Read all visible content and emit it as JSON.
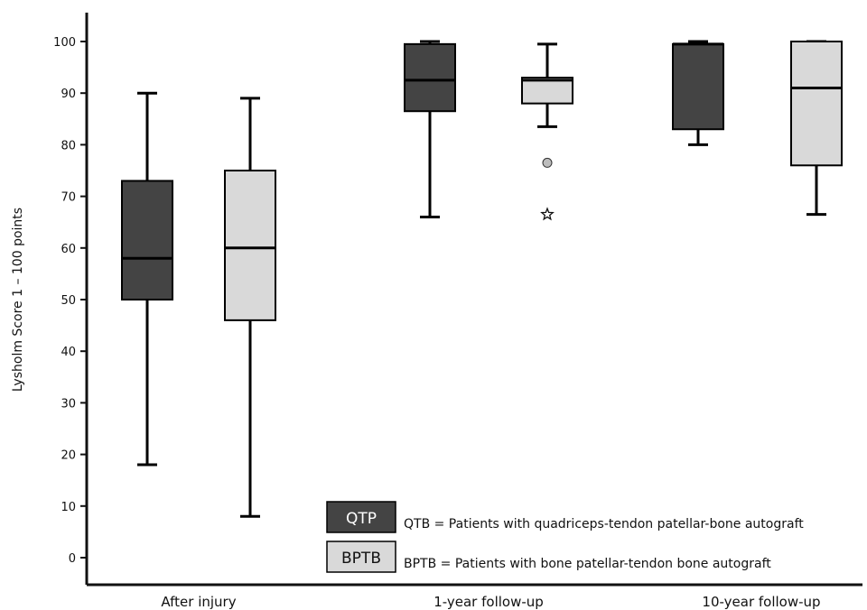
{
  "chart_data": {
    "type": "boxplot",
    "ylabel": "Lysholm Score 1 – 100 points",
    "ylim": [
      0,
      100
    ],
    "yticks": [
      0,
      10,
      20,
      30,
      40,
      50,
      60,
      70,
      80,
      90,
      100
    ],
    "grid": false,
    "categories": [
      "After injury",
      "1-year follow-up",
      "10-year follow-up"
    ],
    "series": [
      {
        "name": "QTP",
        "description": "QTB = Patients with quadriceps-tendon patellar-bone autograft",
        "color": "#444444",
        "boxes": [
          {
            "min": 18,
            "q1": 50,
            "median": 58,
            "q3": 73,
            "max": 90,
            "outliers": []
          },
          {
            "min": 66,
            "q1": 86.5,
            "median": 92.5,
            "q3": 99.5,
            "max": 100,
            "outliers": []
          },
          {
            "min": 80,
            "q1": 83,
            "median": 99.5,
            "q3": 99.5,
            "max": 100,
            "outliers": []
          }
        ]
      },
      {
        "name": "BPTB",
        "description": "BPTB = Patients with bone patellar-tendon bone autograft",
        "color": "#d9d9d9",
        "boxes": [
          {
            "min": 8,
            "q1": 46,
            "median": 60,
            "q3": 75,
            "max": 89,
            "outliers": []
          },
          {
            "min": 83.5,
            "q1": 88,
            "median": 92.5,
            "q3": 93,
            "max": 99.5,
            "outliers": [
              {
                "value": 76.5,
                "marker": "circle"
              },
              {
                "value": 66.5,
                "marker": "star"
              }
            ]
          },
          {
            "min": 66.5,
            "q1": 76,
            "median": 91,
            "q3": 100,
            "max": 100,
            "outliers": []
          }
        ]
      }
    ],
    "legend": "bottom-right"
  }
}
